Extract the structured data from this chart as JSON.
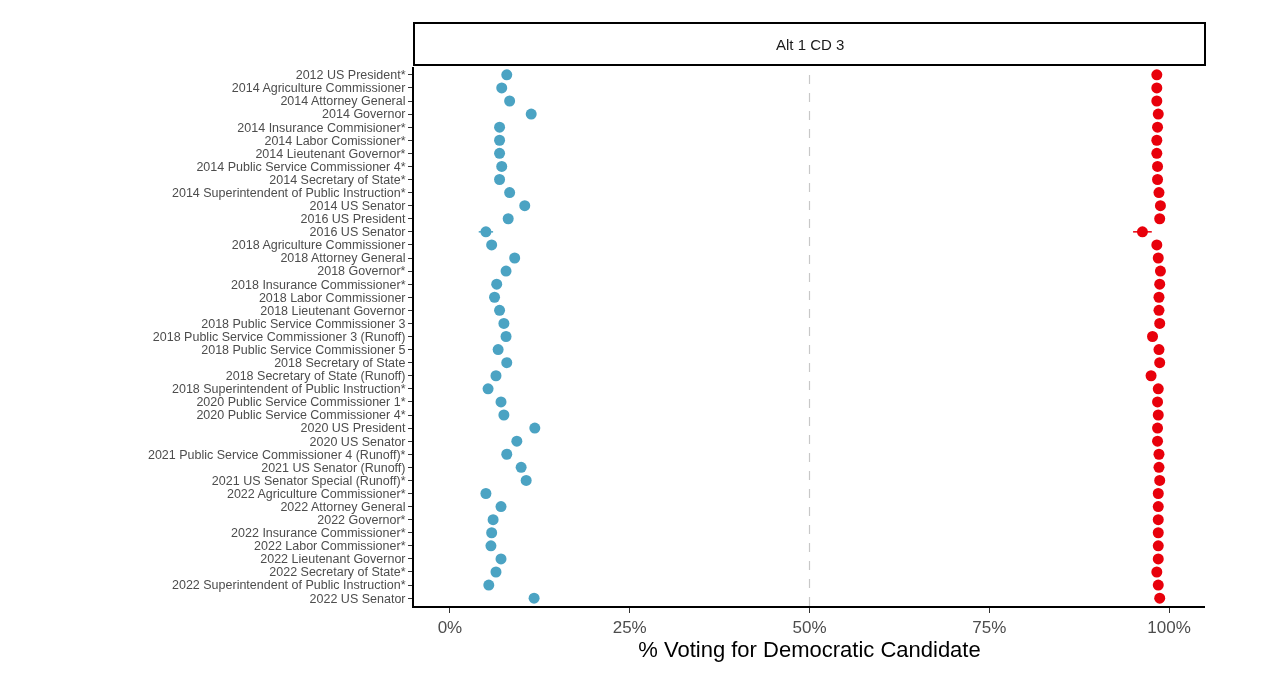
{
  "chart_data": {
    "type": "scatter",
    "title": "Alt 1 CD 3",
    "xlabel": "% Voting for Democratic Candidate",
    "categories": [
      "2012 US President*",
      "2014 Agriculture Commissioner",
      "2014 Attorney General",
      "2014 Governor",
      "2014 Insurance Commisioner*",
      "2014 Labor Comissioner*",
      "2014 Lieutenant Governor*",
      "2014 Public Service Commissioner 4*",
      "2014 Secretary of State*",
      "2014 Superintendent of Public Instruction*",
      "2014 US Senator",
      "2016 US President",
      "2016 US Senator",
      "2018 Agriculture Commissioner",
      "2018 Attorney General",
      "2018 Governor*",
      "2018 Insurance Commissioner*",
      "2018 Labor Commissioner",
      "2018 Lieutenant Governor",
      "2018 Public Service Commissioner 3",
      "2018 Public Service Commissioner 3 (Runoff)",
      "2018 Public Service Commissioner 5",
      "2018 Secretary of State",
      "2018 Secretary of State (Runoff)",
      "2018 Superintendent of Public Instruction*",
      "2020 Public Service Commissioner 1*",
      "2020 Public Service Commissioner 4*",
      "2020 US President",
      "2020 US Senator",
      "2021 Public Service Commissioner 4 (Runoff)*",
      "2021 US Senator (Runoff)",
      "2021 US Senator Special (Runoff)*",
      "2022 Agriculture Commissioner*",
      "2022 Attorney General",
      "2022 Governor*",
      "2022 Insurance Commissioner*",
      "2022 Labor Commissioner*",
      "2022 Lieutenant Governor",
      "2022 Secretary of State*",
      "2022 Superintendent of Public Instruction*",
      "2022 US Senator"
    ],
    "series": [
      {
        "color": "#4ba3c3",
        "values": [
          7.9,
          7.2,
          8.3,
          11.3,
          6.9,
          6.9,
          6.9,
          7.2,
          6.9,
          8.3,
          10.4,
          8.1,
          5.0,
          5.8,
          9.0,
          7.8,
          6.5,
          6.2,
          6.9,
          7.5,
          7.8,
          6.7,
          7.9,
          6.4,
          5.3,
          7.1,
          7.5,
          11.8,
          9.3,
          7.9,
          9.9,
          10.6,
          5.0,
          7.1,
          6.0,
          5.8,
          5.7,
          7.1,
          6.4,
          5.4,
          11.7
        ],
        "errors": [
          null,
          null,
          null,
          null,
          null,
          null,
          null,
          null,
          null,
          null,
          null,
          null,
          1.0,
          null,
          null,
          null,
          null,
          null,
          null,
          null,
          null,
          null,
          null,
          null,
          null,
          null,
          null,
          null,
          null,
          null,
          null,
          null,
          null,
          null,
          null,
          null,
          null,
          null,
          null,
          null,
          null
        ]
      },
      {
        "color": "#e8000b",
        "values": [
          98.3,
          98.3,
          98.3,
          98.5,
          98.4,
          98.3,
          98.3,
          98.4,
          98.4,
          98.6,
          98.8,
          98.7,
          96.3,
          98.3,
          98.5,
          98.8,
          98.7,
          98.6,
          98.6,
          98.7,
          97.7,
          98.6,
          98.7,
          97.5,
          98.5,
          98.4,
          98.5,
          98.4,
          98.4,
          98.6,
          98.6,
          98.7,
          98.5,
          98.5,
          98.5,
          98.5,
          98.5,
          98.5,
          98.3,
          98.5,
          98.7
        ],
        "errors": [
          null,
          null,
          null,
          null,
          null,
          null,
          null,
          null,
          null,
          null,
          null,
          null,
          1.3,
          null,
          null,
          null,
          null,
          null,
          null,
          null,
          null,
          null,
          null,
          null,
          null,
          null,
          null,
          null,
          null,
          null,
          null,
          null,
          null,
          null,
          null,
          null,
          null,
          null,
          null,
          null,
          null
        ]
      }
    ],
    "xlim": [
      -5,
      105
    ],
    "xticks": [
      {
        "value": 0,
        "label": "0%"
      },
      {
        "value": 25,
        "label": "25%"
      },
      {
        "value": 50,
        "label": "50%"
      },
      {
        "value": 75,
        "label": "75%"
      },
      {
        "value": 100,
        "label": "100%"
      }
    ],
    "ref_lines": [
      {
        "axis": "x",
        "value": 50,
        "color": "#c8c8c8",
        "line_style": "dashed"
      }
    ],
    "orientation": "horizontal",
    "marker": "circle",
    "grid": false
  }
}
